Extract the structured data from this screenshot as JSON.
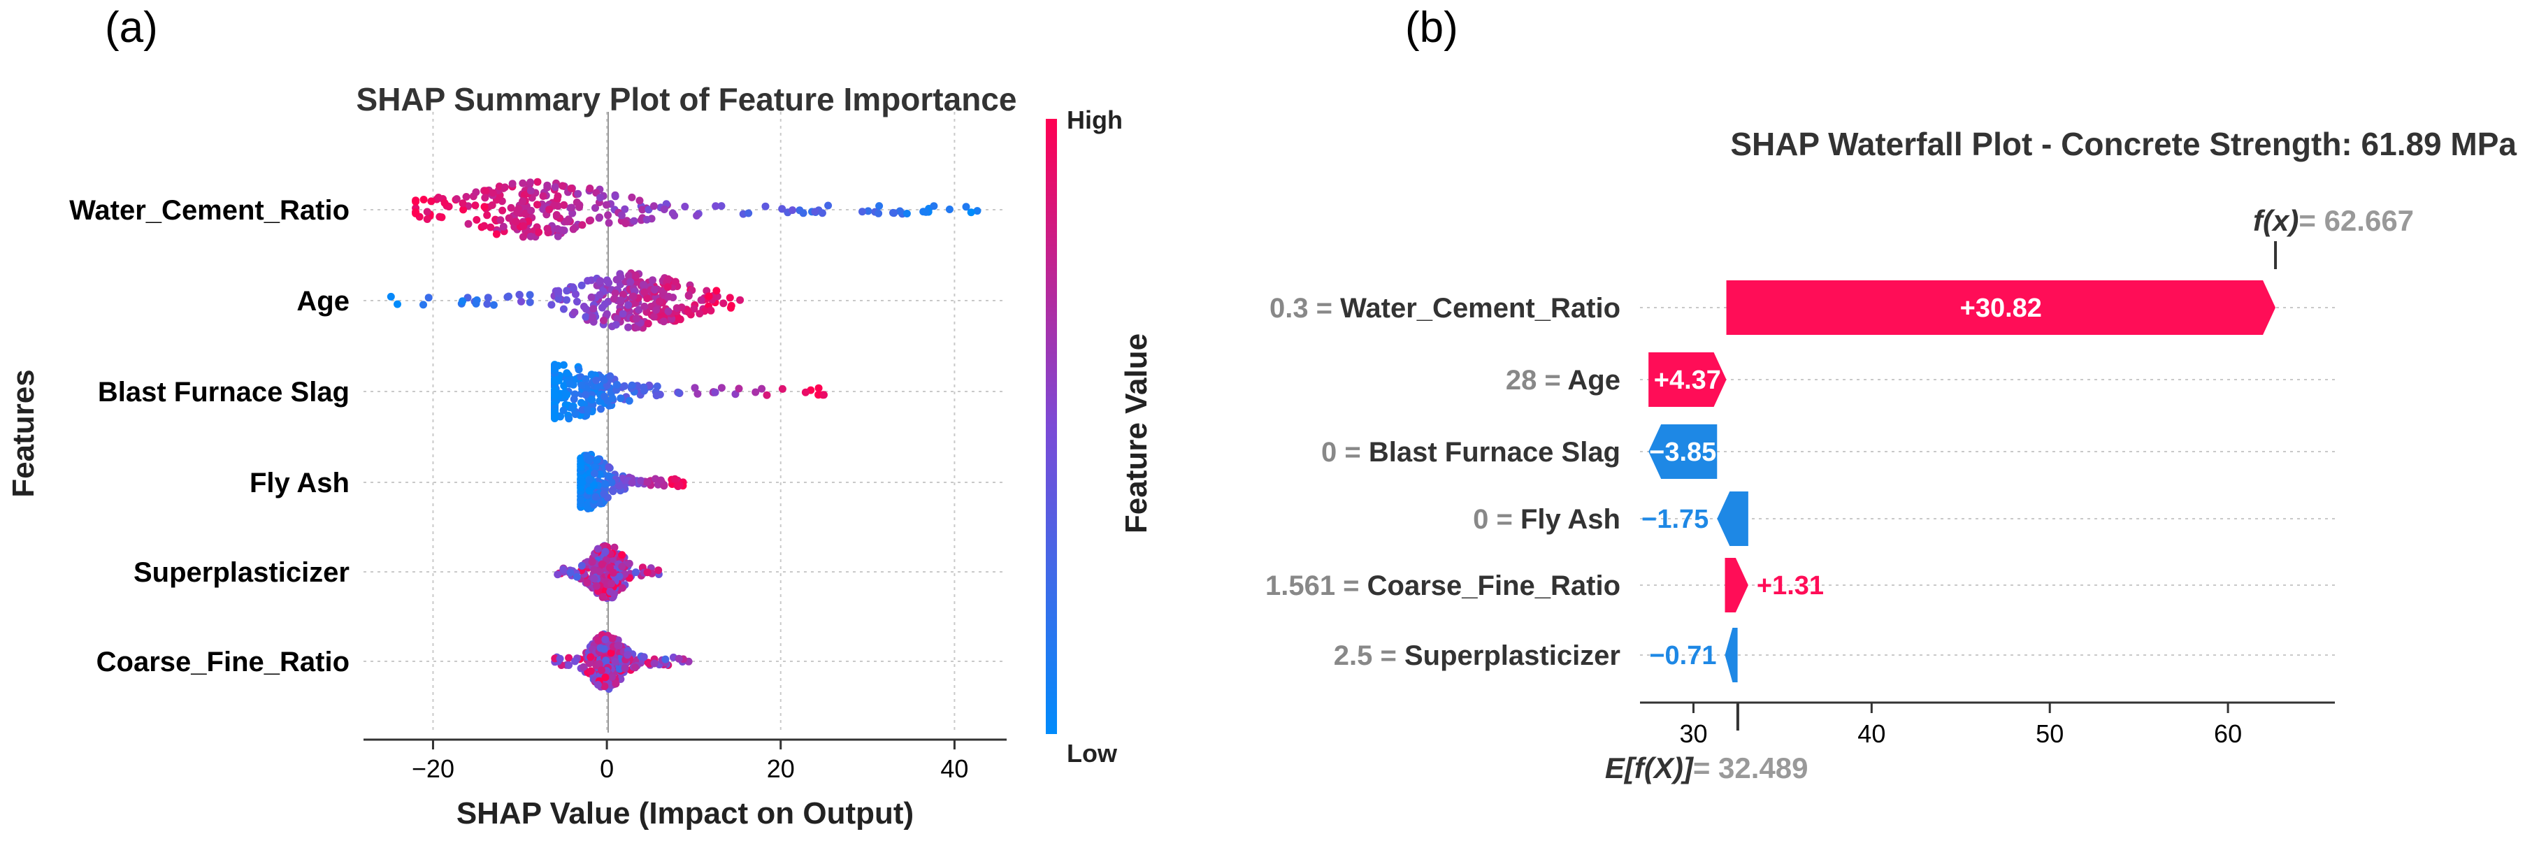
{
  "panels": {
    "a_label": "(a)",
    "b_label": "(b)"
  },
  "chart_data": [
    {
      "type": "scatter",
      "subtype": "shap_beeswarm",
      "title": "SHAP Summary Plot of Feature Importance",
      "xlabel": "SHAP Value (Impact on Output)",
      "ylabel": "Features",
      "xlim": [
        -28,
        46
      ],
      "xticks": [
        -20,
        0,
        20,
        40
      ],
      "xtick_labels": [
        "−20",
        "0",
        "20",
        "40"
      ],
      "colorbar": {
        "label": "Feature Value",
        "high": "High",
        "low": "Low",
        "high_color": "#ff0052",
        "low_color": "#008bfb"
      },
      "features": [
        {
          "name": "Water_Cement_Ratio",
          "min": -22,
          "max": 43,
          "center": -8,
          "spread": 13
        },
        {
          "name": "Age",
          "min": -25,
          "max": 16,
          "center": 3,
          "spread": 9
        },
        {
          "name": "Blast Furnace Slag",
          "min": -6,
          "max": 25,
          "center": -5,
          "spread": 7
        },
        {
          "name": "Fly Ash",
          "min": -3,
          "max": 9,
          "center": -2,
          "spread": 3
        },
        {
          "name": "Superplasticizer",
          "min": -6,
          "max": 6,
          "center": 0,
          "spread": 2.5
        },
        {
          "name": "Coarse_Fine_Ratio",
          "min": -6,
          "max": 10,
          "center": 0,
          "spread": 2.5
        }
      ]
    },
    {
      "type": "bar",
      "subtype": "shap_waterfall",
      "title": "SHAP Waterfall Plot - Concrete Strength: 61.89 MPa",
      "base_value": 32.489,
      "base_label": "E[f(X)]",
      "base_value_text": "= 32.489",
      "output_value": 62.667,
      "output_label": "f(x)",
      "output_value_text": "= 62.667",
      "xlim": [
        27,
        66
      ],
      "xticks": [
        30,
        40,
        50,
        60
      ],
      "xtick_labels": [
        "30",
        "40",
        "50",
        "60"
      ],
      "positive_color": "#ff0d57",
      "negative_color": "#1e88e5",
      "rows": [
        {
          "feature_value": "0.3 =",
          "feature": "Water_Cement_Ratio",
          "contribution": 30.82,
          "label": "+30.82",
          "start": 31.847,
          "end": 62.667
        },
        {
          "feature_value": "28 =",
          "feature": "Age",
          "contribution": 4.37,
          "label": "+4.37",
          "start": 27.477,
          "end": 31.847
        },
        {
          "feature_value": "0 =",
          "feature": "Blast Furnace Slag",
          "contribution": -3.85,
          "label": "−3.85",
          "start": 31.327,
          "end": 27.477
        },
        {
          "feature_value": "0 =",
          "feature": "Fly Ash",
          "contribution": -1.75,
          "label": "−1.75",
          "start": 33.077,
          "end": 31.327
        },
        {
          "feature_value": "1.561 =",
          "feature": "Coarse_Fine_Ratio",
          "contribution": 1.31,
          "label": "+1.31",
          "start": 31.767,
          "end": 33.077
        },
        {
          "feature_value": "2.5 =",
          "feature": "Superplasticizer",
          "contribution": -0.71,
          "label": "−0.71",
          "start": 32.477,
          "end": 31.767
        }
      ]
    }
  ]
}
